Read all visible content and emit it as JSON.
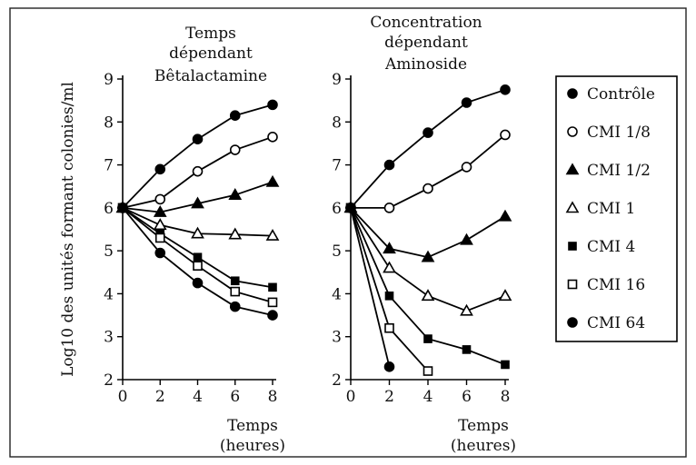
{
  "chart_data": [
    {
      "type": "line",
      "title": [
        "Temps",
        "dépendant",
        "Bêtalactamine"
      ],
      "xlabel": [
        "Temps",
        "(heures)"
      ],
      "ylabel": "Log10 des unités formant colonies/ml",
      "xlim": [
        0,
        8
      ],
      "ylim": [
        2,
        9
      ],
      "xticks": [
        0,
        2,
        4,
        6,
        8
      ],
      "yticks": [
        2,
        3,
        4,
        5,
        6,
        7,
        8,
        9
      ],
      "grid": false,
      "series": [
        {
          "name": "Contrôle",
          "marker": "filled-circle",
          "x": [
            0,
            2,
            4,
            6,
            8
          ],
          "y": [
            6.0,
            6.9,
            7.6,
            8.15,
            8.4
          ]
        },
        {
          "name": "CMI 1/8",
          "marker": "open-circle",
          "x": [
            0,
            2,
            4,
            6,
            8
          ],
          "y": [
            6.0,
            6.2,
            6.85,
            7.35,
            7.65
          ]
        },
        {
          "name": "CMI 1/2",
          "marker": "filled-triangle",
          "x": [
            0,
            2,
            4,
            6,
            8
          ],
          "y": [
            6.0,
            5.9,
            6.1,
            6.3,
            6.6
          ]
        },
        {
          "name": "CMI 1",
          "marker": "open-triangle",
          "x": [
            0,
            2,
            4,
            6,
            8
          ],
          "y": [
            6.0,
            5.6,
            5.4,
            5.38,
            5.35
          ]
        },
        {
          "name": "CMI 4",
          "marker": "filled-square",
          "x": [
            0,
            2,
            4,
            6,
            8
          ],
          "y": [
            6.0,
            5.4,
            4.85,
            4.3,
            4.15
          ]
        },
        {
          "name": "CMI 16",
          "marker": "open-square",
          "x": [
            0,
            2,
            4,
            6,
            8
          ],
          "y": [
            6.0,
            5.3,
            4.65,
            4.05,
            3.8
          ]
        },
        {
          "name": "CMI 64",
          "marker": "filled-circle",
          "x": [
            0,
            2,
            4,
            6,
            8
          ],
          "y": [
            6.0,
            4.95,
            4.25,
            3.7,
            3.5
          ]
        }
      ]
    },
    {
      "type": "line",
      "title": [
        "Concentration",
        "dépendant",
        "Aminoside"
      ],
      "xlabel": [
        "Temps",
        "(heures)"
      ],
      "xlim": [
        0,
        8
      ],
      "ylim": [
        2,
        9
      ],
      "xticks": [
        0,
        2,
        4,
        6,
        8
      ],
      "yticks": [
        2,
        3,
        4,
        5,
        6,
        7,
        8,
        9
      ],
      "grid": false,
      "series": [
        {
          "name": "Contrôle",
          "marker": "filled-circle",
          "x": [
            0,
            2,
            4,
            6,
            8
          ],
          "y": [
            6.0,
            7.0,
            7.75,
            8.45,
            8.75
          ]
        },
        {
          "name": "CMI 1/8",
          "marker": "open-circle",
          "x": [
            0,
            2,
            4,
            6,
            8
          ],
          "y": [
            6.0,
            6.0,
            6.45,
            6.95,
            7.7
          ]
        },
        {
          "name": "CMI 1/2",
          "marker": "filled-triangle",
          "x": [
            0,
            2,
            4,
            6,
            8
          ],
          "y": [
            6.0,
            5.05,
            4.85,
            5.25,
            5.8
          ]
        },
        {
          "name": "CMI 1",
          "marker": "open-triangle",
          "x": [
            0,
            2,
            4,
            6,
            8
          ],
          "y": [
            6.0,
            4.6,
            3.95,
            3.6,
            3.95
          ]
        },
        {
          "name": "CMI 4",
          "marker": "filled-square",
          "x": [
            0,
            2,
            4,
            6,
            8
          ],
          "y": [
            6.0,
            3.95,
            2.95,
            2.7,
            2.35
          ]
        },
        {
          "name": "CMI 16",
          "marker": "open-square",
          "x": [
            0,
            2,
            4
          ],
          "y": [
            6.0,
            3.2,
            2.2
          ]
        },
        {
          "name": "CMI 64",
          "marker": "filled-circle",
          "x": [
            0,
            2
          ],
          "y": [
            6.0,
            2.3
          ]
        }
      ]
    }
  ],
  "legend": {
    "placement": "right",
    "entries": [
      {
        "label": "Contrôle",
        "marker": "filled-circle"
      },
      {
        "label": "CMI 1/8",
        "marker": "open-circle"
      },
      {
        "label": "CMI 1/2",
        "marker": "filled-triangle"
      },
      {
        "label": "CMI 1",
        "marker": "open-triangle"
      },
      {
        "label": "CMI 4",
        "marker": "filled-square"
      },
      {
        "label": "CMI 16",
        "marker": "open-square"
      },
      {
        "label": "CMI 64",
        "marker": "filled-circle"
      }
    ]
  }
}
